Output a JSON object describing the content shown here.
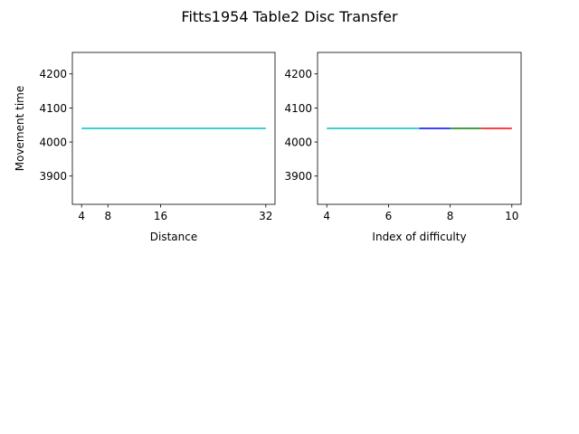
{
  "figure": {
    "title": "Fitts1954 Table2 Disc Transfer"
  },
  "chart_data": [
    {
      "type": "line",
      "xlabel": "Distance",
      "ylabel": "Movement time",
      "xlim": [
        2.6,
        33.4
      ],
      "ylim": [
        3817,
        4263
      ],
      "xticks": [
        4,
        8,
        16,
        32
      ],
      "yticks": [
        3900,
        4000,
        4100,
        4200
      ],
      "grid": false,
      "series": [
        {
          "color": "#00bfbf",
          "x": [
            4,
            32
          ],
          "y": [
            4040,
            4040
          ]
        }
      ]
    },
    {
      "type": "line",
      "xlabel": "Index of difficulty",
      "ylabel": "",
      "xlim": [
        3.7,
        10.3
      ],
      "ylim": [
        3817,
        4263
      ],
      "xticks": [
        4,
        6,
        8,
        10
      ],
      "yticks": [
        3900,
        4000,
        4100,
        4200
      ],
      "grid": false,
      "series": [
        {
          "color": "#ff0000",
          "x": [
            9,
            10
          ],
          "y": [
            4040,
            4040
          ]
        },
        {
          "color": "#008000",
          "x": [
            8,
            9
          ],
          "y": [
            4040,
            4040
          ]
        },
        {
          "color": "#0000ff",
          "x": [
            7,
            8
          ],
          "y": [
            4040,
            4040
          ]
        },
        {
          "color": "#00bfbf",
          "x": [
            4,
            7
          ],
          "y": [
            4040,
            4040
          ]
        }
      ]
    }
  ]
}
